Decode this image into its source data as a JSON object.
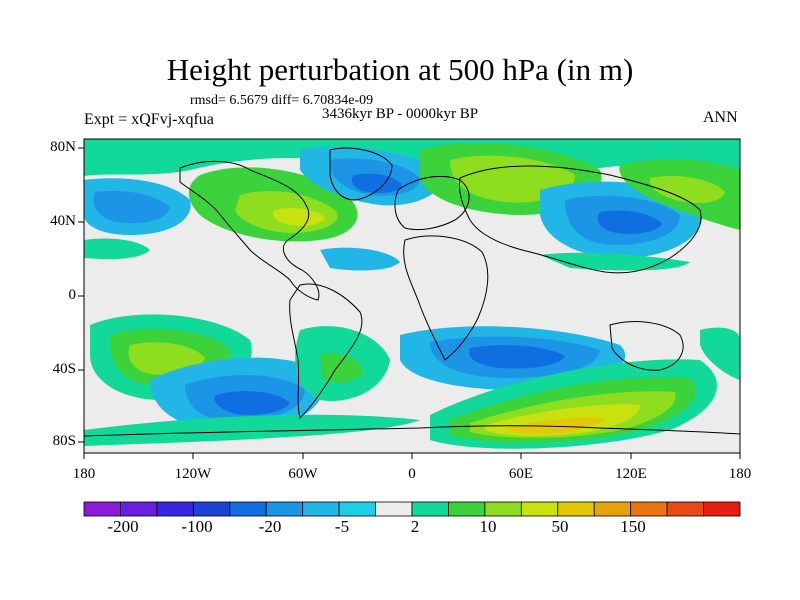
{
  "figure": {
    "title": "Height perturbation at 500 hPa (in m)",
    "stats_line": "rmsd= 6.5679 diff= 6.70834e-09",
    "period": "3436kyr BP - 0000kyr BP",
    "experiment": "Expt = xQFvj-xqfua",
    "season": "ANN"
  },
  "axes": {
    "lat_labels": [
      "80N",
      "40N",
      "0",
      "40S",
      "80S"
    ],
    "lon_labels": [
      "180",
      "120W",
      "60W",
      "0",
      "60E",
      "120E",
      "180"
    ]
  },
  "colorbar": {
    "labels": [
      "-200",
      "-100",
      "-20",
      "-5",
      "2",
      "10",
      "50",
      "150"
    ],
    "colors": [
      "#8c1bd9",
      "#6a1fde",
      "#3a26e0",
      "#1a43d6",
      "#0f6fe0",
      "#1c95e6",
      "#22b6e6",
      "#1fcde6",
      "#ececec",
      "#12d89a",
      "#3bd23b",
      "#8ede1f",
      "#c8e20f",
      "#e4c808",
      "#e8a20a",
      "#ec7510",
      "#e84a14",
      "#e41f12"
    ]
  },
  "palette": {
    "background_field": "#ececec",
    "coast": "#000000"
  }
}
